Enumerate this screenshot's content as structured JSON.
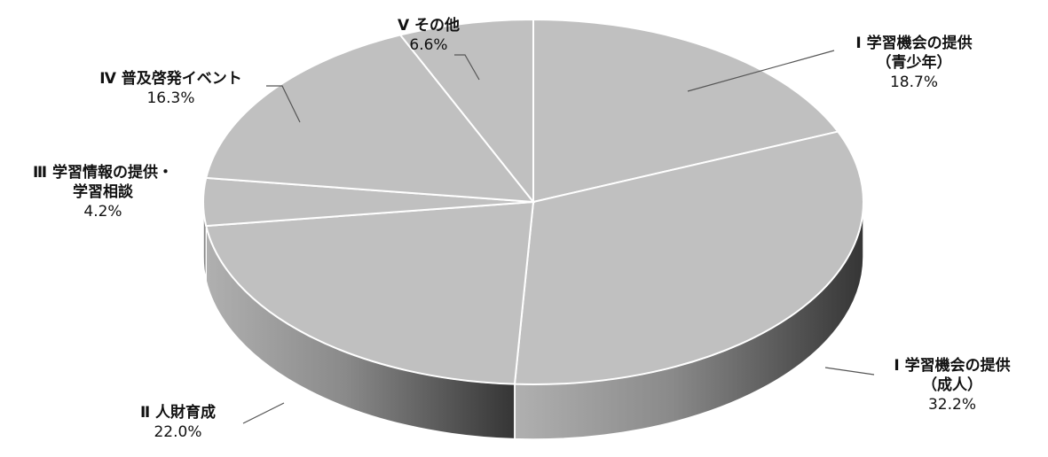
{
  "chart_data": {
    "type": "pie",
    "style": "3d",
    "slices": [
      {
        "id": "youth",
        "name": "Ⅰ 学習機会の提供",
        "name2": "（青少年）",
        "value": 18.7,
        "value_label": "18.7%"
      },
      {
        "id": "adult",
        "name": "Ⅰ 学習機会の提供",
        "name2": "（成人）",
        "value": 32.2,
        "value_label": "32.2%"
      },
      {
        "id": "hr",
        "name": "Ⅱ 人財育成",
        "name2": "",
        "value": 22.0,
        "value_label": "22.0%"
      },
      {
        "id": "info",
        "name": "Ⅲ 学習情報の提供・",
        "name2": "学習相談",
        "value": 4.2,
        "value_label": "4.2%"
      },
      {
        "id": "event",
        "name": "Ⅳ 普及啓発イベント",
        "name2": "",
        "value": 16.3,
        "value_label": "16.3%"
      },
      {
        "id": "other",
        "name": "Ⅴ その他",
        "name2": "",
        "value": 6.6,
        "value_label": "6.6%"
      }
    ],
    "colors": {
      "top": "#c0c0c0",
      "separator": "#ffffff",
      "side_light": "#a8a8a8",
      "side_dark": "#3c3c3c",
      "leader": "#555555"
    }
  }
}
